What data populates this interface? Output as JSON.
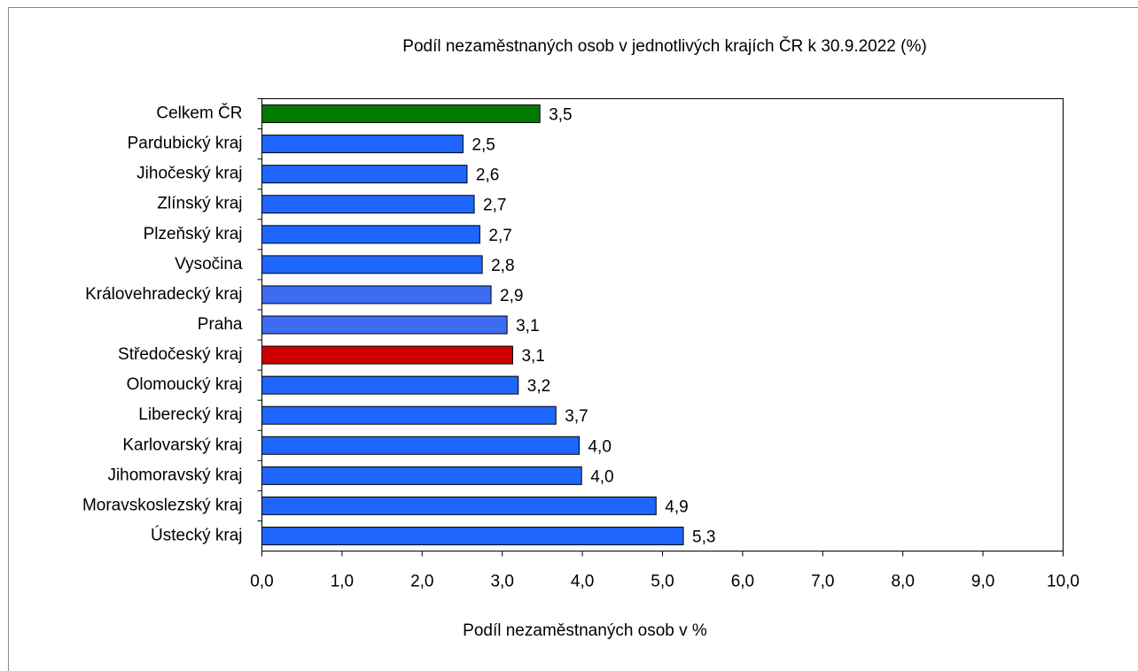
{
  "chart_data": {
    "type": "barh",
    "title": "Podíl nezaměstnaných osob v jednotlivých krajích ČR k 30.9.2022 (%)",
    "x_label": "Podíl nezaměstnaných osob v %",
    "categories": [
      "Celkem ČR",
      "Pardubický kraj",
      "Jihočeský kraj",
      "Zlínský kraj",
      "Plzeňský kraj",
      "Vysočina",
      "Královehradecký kraj",
      "Praha",
      "Středočeský kraj",
      "Olomoucký kraj",
      "Liberecký kraj",
      "Karlovarský kraj",
      "Jihomoravský kraj",
      "Moravskoslezský kraj",
      "Ústecký kraj"
    ],
    "values": [
      3.47,
      2.51,
      2.56,
      2.65,
      2.72,
      2.75,
      2.86,
      3.06,
      3.13,
      3.2,
      3.67,
      3.96,
      3.99,
      4.92,
      5.26
    ],
    "value_labels": [
      "3,5",
      "2,5",
      "2,6",
      "2,7",
      "2,7",
      "2,8",
      "2,9",
      "3,1",
      "3,1",
      "3,2",
      "3,7",
      "4,0",
      "4,0",
      "4,9",
      "5,3"
    ],
    "colors": [
      "#007a00",
      "#1f66ff",
      "#1f66ff",
      "#1f66ff",
      "#1f66ff",
      "#1f66ff",
      "#3d6cf2",
      "#3d6cf2",
      "#cc0000",
      "#1f66ff",
      "#1f66ff",
      "#1f66ff",
      "#1f66ff",
      "#1f66ff",
      "#1f66ff"
    ],
    "xlim": [
      0,
      10
    ],
    "xticks": [
      {
        "value": 0,
        "label": "0,0"
      },
      {
        "value": 1,
        "label": "1,0"
      },
      {
        "value": 2,
        "label": "2,0"
      },
      {
        "value": 3,
        "label": "3,0"
      },
      {
        "value": 4,
        "label": "4,0"
      },
      {
        "value": 5,
        "label": "5,0"
      },
      {
        "value": 6,
        "label": "6,0"
      },
      {
        "value": 7,
        "label": "7,0"
      },
      {
        "value": 8,
        "label": "8,0"
      },
      {
        "value": 9,
        "label": "9,0"
      },
      {
        "value": 10,
        "label": "10,0"
      }
    ]
  }
}
